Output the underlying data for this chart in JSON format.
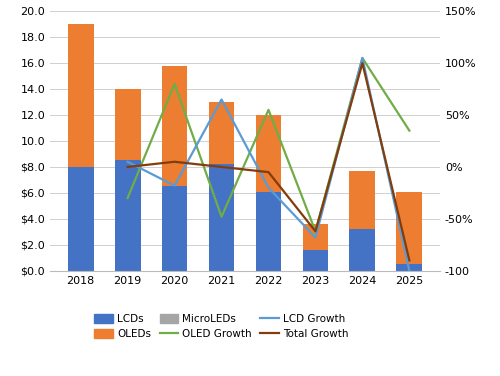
{
  "years": [
    2018,
    2019,
    2020,
    2021,
    2022,
    2023,
    2024,
    2025
  ],
  "lcd_values": [
    8.0,
    8.5,
    6.5,
    8.2,
    6.1,
    1.6,
    3.2,
    0.5
  ],
  "oled_values": [
    11.0,
    5.5,
    9.3,
    4.8,
    5.9,
    2.0,
    4.5,
    5.6
  ],
  "microled_values": [
    0.0,
    0.0,
    0.0,
    0.0,
    0.0,
    0.0,
    0.0,
    0.0
  ],
  "oled_growth": [
    null,
    -30,
    80,
    -48,
    55,
    -62,
    105,
    35
  ],
  "lcd_growth": [
    null,
    5,
    -18,
    65,
    -20,
    -68,
    105,
    -100
  ],
  "total_growth": [
    null,
    0,
    5,
    0,
    -5,
    -62,
    100,
    -90
  ],
  "bar_color_lcd": "#4472C4",
  "bar_color_oled": "#ED7D31",
  "bar_color_microled": "#A5A5A5",
  "line_color_oled": "#70AD47",
  "line_color_lcd": "#5B9BD5",
  "line_color_total": "#833C0B",
  "ylim_left": [
    0,
    20.0
  ],
  "ylim_right": [
    -100,
    150
  ],
  "yticks_left": [
    0.0,
    2.0,
    4.0,
    6.0,
    8.0,
    10.0,
    12.0,
    14.0,
    16.0,
    18.0,
    20.0
  ],
  "ytick_labels_left": [
    "$0.0",
    "$2.0",
    "$4.0",
    "$6.0",
    "$8.0",
    "10.0",
    "12.0",
    "14.0",
    "16.0",
    "18.0",
    "20.0"
  ],
  "yticks_right": [
    -100,
    -50,
    0,
    50,
    100,
    150
  ],
  "ytick_labels_right": [
    "-100",
    "-50%",
    "0%",
    "50%",
    "100%",
    "150%"
  ],
  "bar_width": 0.55,
  "background_color": "#FFFFFF",
  "figsize": [
    5.0,
    3.76
  ],
  "dpi": 100
}
